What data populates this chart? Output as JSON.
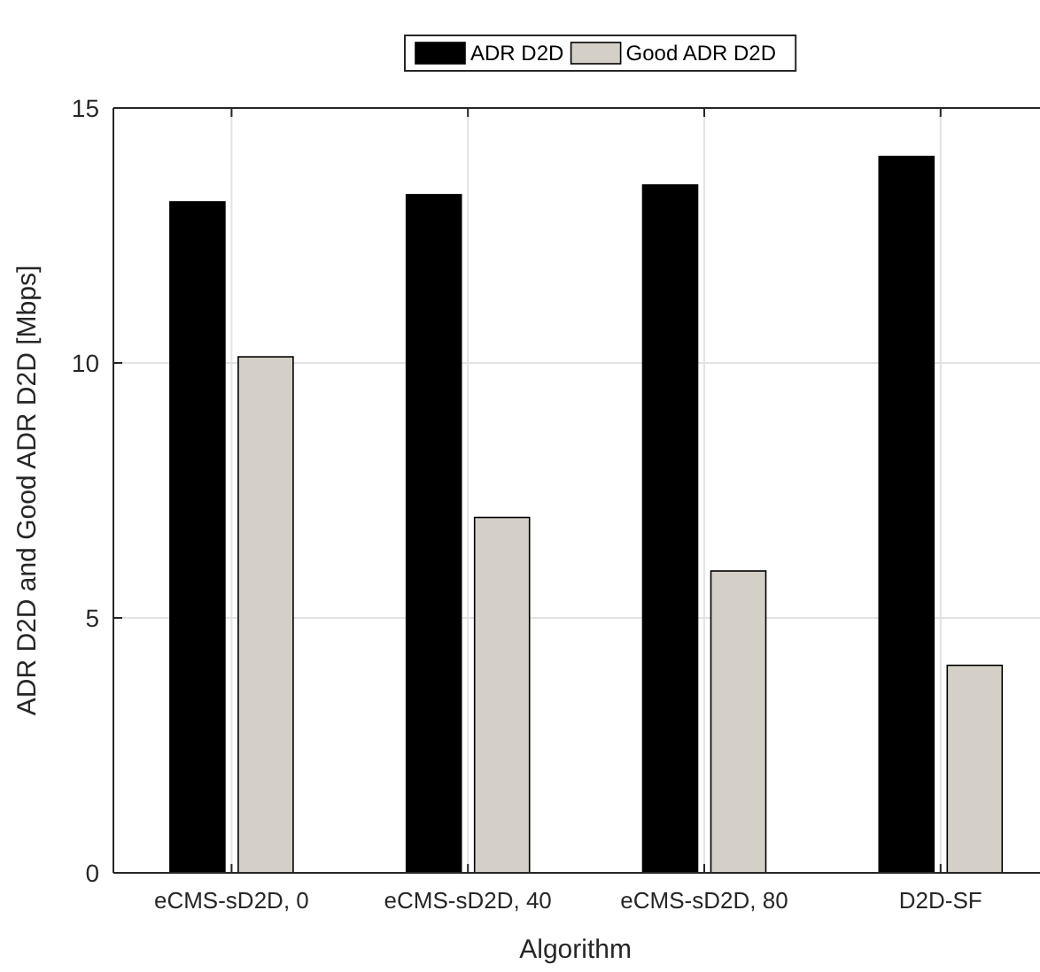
{
  "chart_data": {
    "type": "bar",
    "xlabel": "Algorithm",
    "ylabel": "ADR D2D and Good ADR D2D [Mbps]",
    "categories": [
      "eCMS-sD2D, 0",
      "eCMS-sD2D, 40",
      "eCMS-sD2D, 80",
      "D2D-SF"
    ],
    "series": [
      {
        "name": "ADR D2D",
        "color": "#000000",
        "values": [
          13.16,
          13.3,
          13.49,
          14.05
        ]
      },
      {
        "name": "Good ADR D2D",
        "color": "#d4d0c8",
        "values": [
          10.12,
          6.97,
          5.92,
          4.07
        ]
      }
    ],
    "ylim": [
      0,
      15
    ],
    "yticks": [
      0,
      5,
      10,
      15
    ],
    "grid": true,
    "legend": "top"
  }
}
